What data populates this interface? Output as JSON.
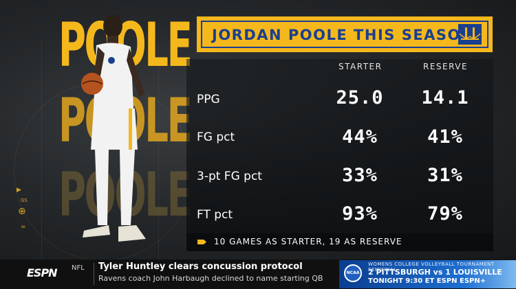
{
  "background_words": [
    "POOLE",
    "POOLE",
    "POOLE"
  ],
  "side_marks": [
    "GS"
  ],
  "title": "JORDAN POOLE THIS SEASON",
  "columns": [
    "STARTER",
    "RESERVE"
  ],
  "rows": [
    {
      "label": "PPG",
      "starter": "25.0",
      "reserve": "14.1"
    },
    {
      "label": "FG pct",
      "starter": "44%",
      "reserve": "41%"
    },
    {
      "label": "3-pt FG pct",
      "starter": "33%",
      "reserve": "31%"
    },
    {
      "label": "FT pct",
      "starter": "93%",
      "reserve": "79%"
    }
  ],
  "footnote": "10 GAMES AS STARTER, 19 AS RESERVE",
  "ticker": {
    "network": "ESPN",
    "league": "NFL",
    "headline": "Tyler Huntley clears concussion protocol",
    "subline": "Ravens coach John Harbaugh declined to name starting QB"
  },
  "promo": {
    "badge": "NCAA",
    "top": "WOMENS COLLEGE VOLLEYBALL TOURNAMENT SEMIFINAL",
    "matchup": "2 PITTSBURGH vs 1 LOUISVILLE",
    "time": "TONIGHT 9:30 ET ESPN ESPN+"
  },
  "colors": {
    "gold": "#f5b81c",
    "blue": "#1a3f8f"
  }
}
